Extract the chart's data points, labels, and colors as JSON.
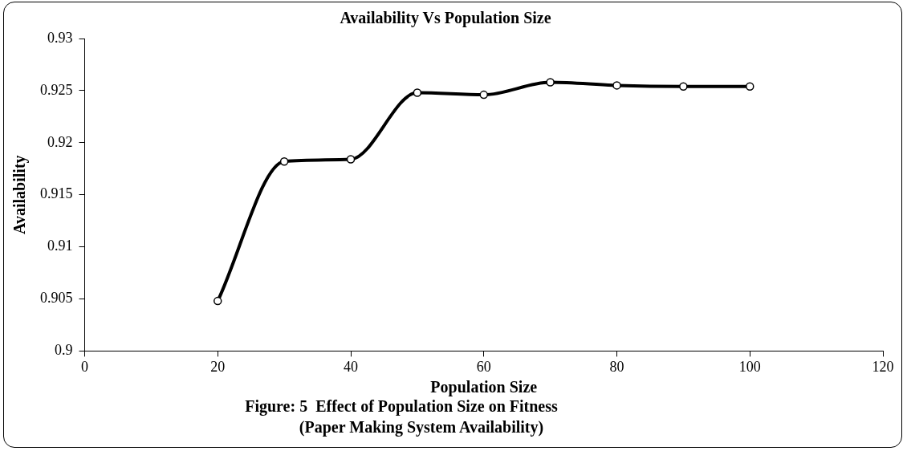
{
  "chart_data": {
    "type": "line",
    "title": "Availability Vs Population Size",
    "xlabel": "Population Size",
    "ylabel": "Availability",
    "x": [
      20,
      30,
      40,
      50,
      60,
      70,
      80,
      90,
      100
    ],
    "series": [
      {
        "color": "#000000",
        "values": [
          0.9048,
          0.9182,
          0.9184,
          0.9248,
          0.9246,
          0.9258,
          0.9255,
          0.9254,
          0.9254
        ]
      }
    ],
    "xlim": [
      0,
      120
    ],
    "xticks": [
      0,
      20,
      40,
      60,
      80,
      100,
      120
    ],
    "ylim": [
      0.9,
      0.93
    ],
    "yticks": [
      0.9,
      0.905,
      0.91,
      0.915,
      0.92,
      0.925,
      0.93
    ],
    "grid": false,
    "legend": false,
    "marker": "circle",
    "line_style": "solid",
    "annotations": [
      "Figure: 5  Effect of Population Size on Fitness",
      "(Paper Making System Availability)"
    ]
  }
}
